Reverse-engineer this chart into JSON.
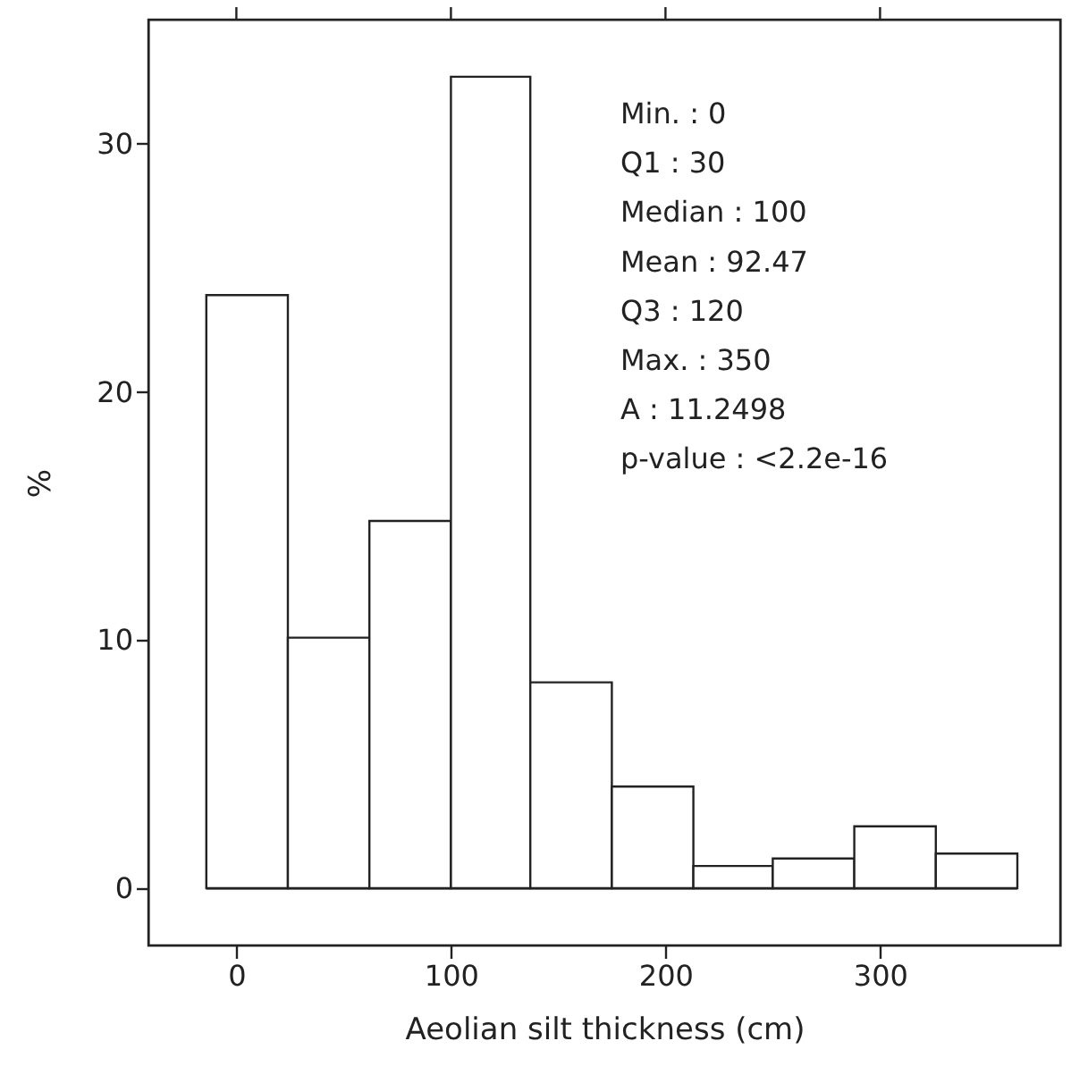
{
  "chart_data": {
    "type": "histogram",
    "bins": [
      -14,
      24,
      62,
      100,
      137,
      175,
      213,
      250,
      288,
      326,
      364
    ],
    "values": [
      23.9,
      10.1,
      14.8,
      32.7,
      8.3,
      4.1,
      0.9,
      1.2,
      2.5,
      1.4
    ],
    "color": "#ffffff",
    "xlabel": "Aeolian silt thickness (cm)",
    "ylabel": "%",
    "xlim": [
      -41,
      384
    ],
    "ylim": [
      -2.3,
      35
    ],
    "xticks": [
      0,
      100,
      200,
      300
    ],
    "yticks": [
      0,
      10,
      20,
      30
    ],
    "annotations": [
      "Min.   : 0",
      "Q1 : 30",
      "Median : 100",
      "Mean : 92.47",
      "Q3 : 120",
      "Max.   : 350",
      "A : 11.2498",
      "p-value : <2.2e-16"
    ]
  }
}
